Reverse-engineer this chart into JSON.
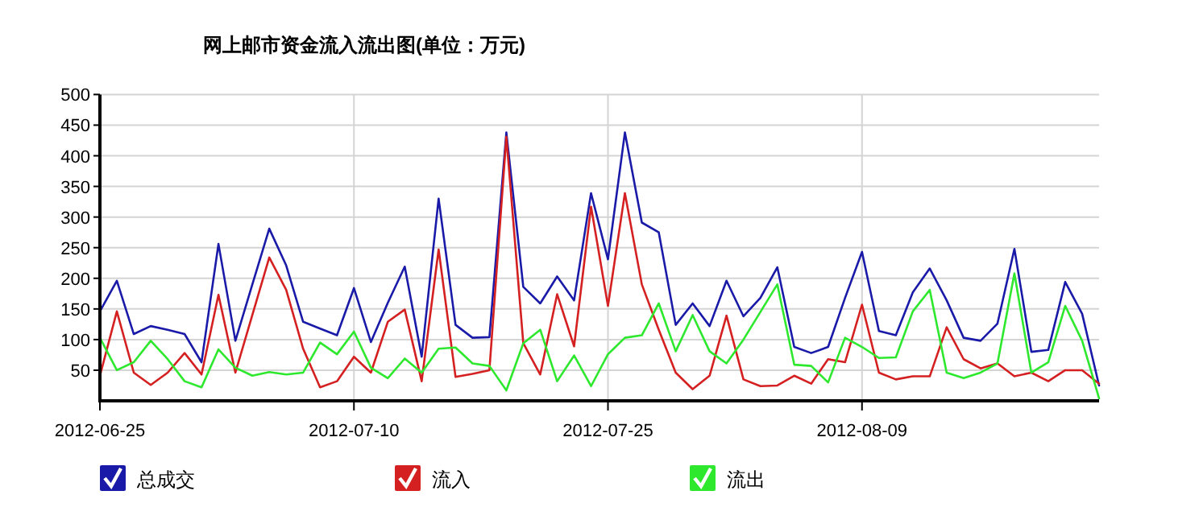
{
  "chart_data": {
    "type": "line",
    "title": "网上邮市资金流入流出图(单位：万元)",
    "x": [
      "2012-06-25",
      "2012-06-26",
      "2012-06-27",
      "2012-06-28",
      "2012-06-29",
      "2012-06-30",
      "2012-07-01",
      "2012-07-02",
      "2012-07-03",
      "2012-07-04",
      "2012-07-05",
      "2012-07-06",
      "2012-07-07",
      "2012-07-08",
      "2012-07-09",
      "2012-07-10",
      "2012-07-11",
      "2012-07-12",
      "2012-07-13",
      "2012-07-14",
      "2012-07-15",
      "2012-07-16",
      "2012-07-17",
      "2012-07-18",
      "2012-07-19",
      "2012-07-20",
      "2012-07-21",
      "2012-07-22",
      "2012-07-23",
      "2012-07-24",
      "2012-07-25",
      "2012-07-26",
      "2012-07-27",
      "2012-07-28",
      "2012-07-29",
      "2012-07-30",
      "2012-07-31",
      "2012-08-01",
      "2012-08-02",
      "2012-08-03",
      "2012-08-04",
      "2012-08-05",
      "2012-08-06",
      "2012-08-07",
      "2012-08-08",
      "2012-08-09",
      "2012-08-10",
      "2012-08-11",
      "2012-08-12",
      "2012-08-13",
      "2012-08-14",
      "2012-08-15",
      "2012-08-16",
      "2012-08-17",
      "2012-08-18",
      "2012-08-19",
      "2012-08-20",
      "2012-08-21",
      "2012-08-22",
      "2012-08-23"
    ],
    "series": [
      {
        "name": "总成交",
        "color": "#1a1aa8",
        "values": [
          146,
          196,
          109,
          122,
          116,
          109,
          63,
          256,
          98,
          190,
          281,
          221,
          129,
          118,
          107,
          184,
          96,
          160,
          219,
          72,
          330,
          124,
          103,
          104,
          438,
          186,
          159,
          203,
          164,
          339,
          231,
          438,
          291,
          275,
          124,
          159,
          122,
          196,
          138,
          168,
          218,
          88,
          78,
          88,
          168,
          243,
          114,
          107,
          177,
          216,
          164,
          103,
          98,
          126,
          248,
          80,
          83,
          194,
          142,
          25
        ]
      },
      {
        "name": "流入",
        "color": "#d42020",
        "values": [
          41,
          146,
          46,
          26,
          46,
          78,
          43,
          173,
          46,
          140,
          234,
          181,
          85,
          22,
          32,
          72,
          46,
          129,
          149,
          32,
          247,
          39,
          44,
          50,
          431,
          94,
          43,
          174,
          89,
          317,
          155,
          339,
          190,
          116,
          46,
          19,
          41,
          139,
          35,
          24,
          25,
          41,
          28,
          68,
          63,
          157,
          46,
          35,
          40,
          40,
          120,
          68,
          53,
          61,
          40,
          46,
          32,
          50,
          50,
          28
        ]
      },
      {
        "name": "流出",
        "color": "#2ee82e",
        "values": [
          103,
          50,
          63,
          98,
          68,
          32,
          22,
          84,
          54,
          41,
          47,
          43,
          46,
          95,
          76,
          113,
          54,
          37,
          69,
          46,
          85,
          87,
          61,
          57,
          17,
          94,
          116,
          32,
          74,
          24,
          76,
          103,
          107,
          159,
          81,
          140,
          81,
          61,
          100,
          145,
          190,
          59,
          57,
          30,
          103,
          88,
          70,
          71,
          146,
          181,
          46,
          37,
          46,
          61,
          208,
          46,
          63,
          155,
          98,
          4
        ]
      }
    ],
    "xlim": [
      "2012-06-25",
      "2012-08-23"
    ],
    "xticks": [
      "2012-06-25",
      "2012-07-10",
      "2012-07-25",
      "2012-08-09"
    ],
    "ylim": [
      0,
      500
    ],
    "yticks": [
      50,
      100,
      150,
      200,
      250,
      300,
      350,
      400,
      450,
      500
    ],
    "grid": true,
    "legend": "bottom",
    "marker": "none",
    "line_style": "solid"
  }
}
